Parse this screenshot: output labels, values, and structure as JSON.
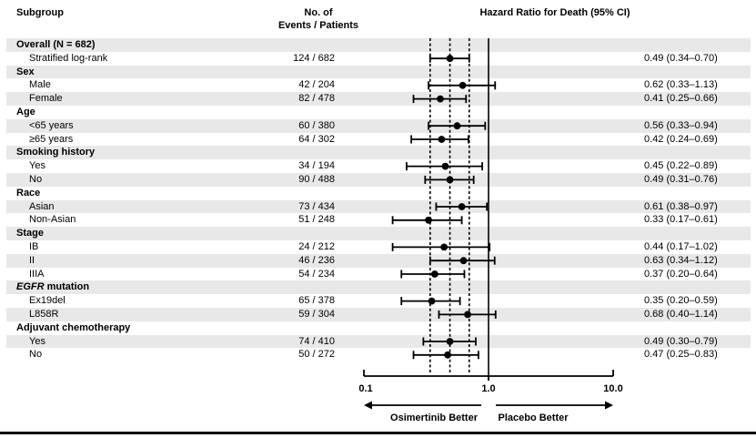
{
  "header": {
    "subgroup": "Subgroup",
    "events_line1": "No. of",
    "events_line2": "Events / Patients",
    "hazard_title": "Hazard Ratio for Death (95% CI)"
  },
  "axis": {
    "tick_labels": [
      "0.1",
      "1.0",
      "10.0"
    ],
    "left_arrow_label": "Osimertinib Better",
    "right_arrow_label": "Placebo Better"
  },
  "colors": {
    "stripe": "#e8e8e8",
    "ink": "#000000"
  },
  "chart_data": {
    "type": "forest",
    "title": "Hazard Ratio for Death (95% CI)",
    "x_scale": "log",
    "x_ticks": [
      0.1,
      1.0,
      10.0
    ],
    "x_range": [
      0.1,
      10.0
    ],
    "reference_line": 1.0,
    "dashed_guides": [
      0.34,
      0.49,
      0.7
    ],
    "arrow_labels": {
      "left": "Osimertinib Better",
      "right": "Placebo Better"
    },
    "rows": [
      {
        "label": "Overall (N = 682)",
        "kind": "category"
      },
      {
        "label": "Stratified log-rank",
        "kind": "item",
        "events": "124 / 682",
        "hr": 0.49,
        "ci_low": 0.34,
        "ci_high": 0.7,
        "hr_text": "0.49 (0.34–0.70)"
      },
      {
        "label": "Sex",
        "kind": "category"
      },
      {
        "label": "Male",
        "kind": "item",
        "events": "42 / 204",
        "hr": 0.62,
        "ci_low": 0.33,
        "ci_high": 1.13,
        "hr_text": "0.62 (0.33–1.13)"
      },
      {
        "label": "Female",
        "kind": "item",
        "events": "82 / 478",
        "hr": 0.41,
        "ci_low": 0.25,
        "ci_high": 0.66,
        "hr_text": "0.41 (0.25–0.66)"
      },
      {
        "label": "Age",
        "kind": "category"
      },
      {
        "label": "<65 years",
        "kind": "item",
        "events": "60 / 380",
        "hr": 0.56,
        "ci_low": 0.33,
        "ci_high": 0.94,
        "hr_text": "0.56 (0.33–0.94)"
      },
      {
        "label": "≥65 years",
        "kind": "item",
        "events": "64 / 302",
        "hr": 0.42,
        "ci_low": 0.24,
        "ci_high": 0.69,
        "hr_text": "0.42 (0.24–0.69)"
      },
      {
        "label": "Smoking history",
        "kind": "category"
      },
      {
        "label": "Yes",
        "kind": "item",
        "events": "34 / 194",
        "hr": 0.45,
        "ci_low": 0.22,
        "ci_high": 0.89,
        "hr_text": "0.45 (0.22–0.89)"
      },
      {
        "label": "No",
        "kind": "item",
        "events": "90 / 488",
        "hr": 0.49,
        "ci_low": 0.31,
        "ci_high": 0.76,
        "hr_text": "0.49 (0.31–0.76)"
      },
      {
        "label": "Race",
        "kind": "category"
      },
      {
        "label": "Asian",
        "kind": "item",
        "events": "73 / 434",
        "hr": 0.61,
        "ci_low": 0.38,
        "ci_high": 0.97,
        "hr_text": "0.61 (0.38–0.97)"
      },
      {
        "label": "Non-Asian",
        "kind": "item",
        "events": "51 / 248",
        "hr": 0.33,
        "ci_low": 0.17,
        "ci_high": 0.61,
        "hr_text": "0.33 (0.17–0.61)"
      },
      {
        "label": "Stage",
        "kind": "category"
      },
      {
        "label": "IB",
        "kind": "item",
        "events": "24 / 212",
        "hr": 0.44,
        "ci_low": 0.17,
        "ci_high": 1.02,
        "hr_text": "0.44 (0.17–1.02)"
      },
      {
        "label": "II",
        "kind": "item",
        "events": "46 / 236",
        "hr": 0.63,
        "ci_low": 0.34,
        "ci_high": 1.12,
        "hr_text": "0.63 (0.34–1.12)"
      },
      {
        "label": "IIIA",
        "kind": "item",
        "events": "54 / 234",
        "hr": 0.37,
        "ci_low": 0.2,
        "ci_high": 0.64,
        "hr_text": "0.37 (0.20–0.64)"
      },
      {
        "label": "EGFR mutation",
        "kind": "category",
        "italic_prefix": "EGFR"
      },
      {
        "label": "Ex19del",
        "kind": "item",
        "events": "65 / 378",
        "hr": 0.35,
        "ci_low": 0.2,
        "ci_high": 0.59,
        "hr_text": "0.35 (0.20–0.59)"
      },
      {
        "label": "L858R",
        "kind": "item",
        "events": "59 / 304",
        "hr": 0.68,
        "ci_low": 0.4,
        "ci_high": 1.14,
        "hr_text": "0.68 (0.40–1.14)"
      },
      {
        "label": "Adjuvant chemotherapy",
        "kind": "category"
      },
      {
        "label": "Yes",
        "kind": "item",
        "events": "74 / 410",
        "hr": 0.49,
        "ci_low": 0.3,
        "ci_high": 0.79,
        "hr_text": "0.49 (0.30–0.79)"
      },
      {
        "label": "No",
        "kind": "item",
        "events": "50 / 272",
        "hr": 0.47,
        "ci_low": 0.25,
        "ci_high": 0.83,
        "hr_text": "0.47 (0.25–0.83)"
      }
    ]
  }
}
